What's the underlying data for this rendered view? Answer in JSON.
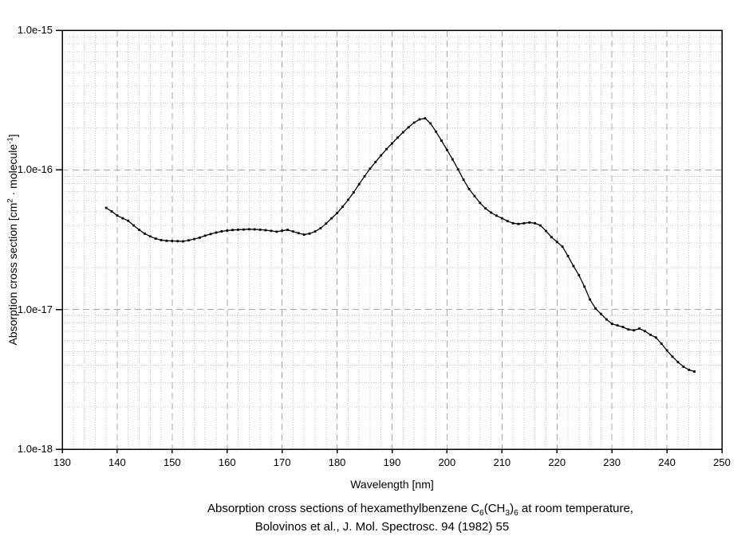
{
  "figure": {
    "background": "#ffffff"
  },
  "colors": {
    "curve": "#000000",
    "axis_frame": "#000000",
    "major_grid": "#ababab",
    "minor_grid": "#c9c9c9",
    "text": "#000000"
  },
  "x_axis": {
    "title": "Wavelength [nm]",
    "range": [
      130,
      250
    ],
    "major_ticks": [
      130,
      140,
      150,
      160,
      170,
      180,
      190,
      200,
      210,
      220,
      230,
      240,
      250
    ],
    "minor_step": 2
  },
  "y_axis": {
    "title_parts": [
      {
        "t": "Absorption cross section [cm"
      },
      {
        "t": "2",
        "style": "sup"
      },
      {
        "t": " · molecule"
      },
      {
        "t": "-1",
        "style": "sup"
      },
      {
        "t": "]"
      }
    ],
    "scale": "log",
    "tick_labels": [
      "1.0e-15",
      "1.0e-16",
      "1.0e-17",
      "1.0e-18"
    ],
    "tick_exponents": [
      -15,
      -16,
      -17,
      -18
    ],
    "range_exponents": [
      -18,
      -15
    ],
    "minor_mantissas": [
      2,
      3,
      4,
      5,
      6,
      7,
      8,
      9
    ]
  },
  "caption": {
    "line1_parts": [
      {
        "t": "Absorption cross sections of hexamethylbenzene C"
      },
      {
        "t": "6",
        "style": "sub"
      },
      {
        "t": "(CH"
      },
      {
        "t": "3",
        "style": "sub"
      },
      {
        "t": ")"
      },
      {
        "t": "6",
        "style": "sub"
      },
      {
        "t": " at room temperature,"
      }
    ],
    "line2": "Bolovinos et al., J. Mol. Spectrosc. 94 (1982) 55"
  },
  "chart_data": {
    "type": "line",
    "title": "Absorption cross sections of hexamethylbenzene C6(CH3)6 at room temperature, Bolovinos et al., J. Mol. Spectrosc. 94 (1982) 55",
    "xlabel": "Wavelength [nm]",
    "ylabel": "Absorption cross section [cm2 · molecule-1]",
    "x_range": [
      130,
      250
    ],
    "y_range": [
      1e-18,
      1e-15
    ],
    "grid": true,
    "legend": false,
    "marker": "square",
    "series": [
      {
        "name": "hexamethylbenzene absorption cross section",
        "x": [
          138,
          139,
          140,
          141,
          142,
          143,
          144,
          145,
          146,
          147,
          148,
          149,
          150,
          151,
          152,
          153,
          154,
          155,
          156,
          157,
          158,
          159,
          160,
          161,
          162,
          163,
          164,
          165,
          166,
          167,
          168,
          169,
          170,
          171,
          172,
          173,
          174,
          175,
          176,
          177,
          178,
          179,
          180,
          181,
          182,
          183,
          184,
          185,
          186,
          187,
          188,
          189,
          190,
          191,
          192,
          193,
          194,
          195,
          196,
          197,
          198,
          199,
          200,
          201,
          202,
          203,
          204,
          205,
          206,
          207,
          208,
          209,
          210,
          211,
          212,
          213,
          214,
          215,
          216,
          217,
          218,
          219,
          220,
          221,
          222,
          223,
          224,
          225,
          226,
          227,
          228,
          229,
          230,
          231,
          232,
          233,
          234,
          235,
          236,
          237,
          238,
          239,
          240,
          241,
          242,
          243,
          244,
          245
        ],
        "y_scale": 1e-17,
        "y_units": "cm^2 molecule^-1 (values are multiples of 1e-17)",
        "y": [
          5.35,
          5.05,
          4.72,
          4.5,
          4.32,
          4.0,
          3.72,
          3.5,
          3.34,
          3.22,
          3.14,
          3.11,
          3.1,
          3.09,
          3.08,
          3.13,
          3.2,
          3.27,
          3.38,
          3.47,
          3.56,
          3.63,
          3.68,
          3.71,
          3.73,
          3.74,
          3.76,
          3.75,
          3.73,
          3.7,
          3.66,
          3.61,
          3.67,
          3.72,
          3.62,
          3.52,
          3.44,
          3.5,
          3.62,
          3.82,
          4.13,
          4.5,
          4.9,
          5.45,
          6.1,
          6.9,
          7.9,
          9.0,
          10.2,
          11.4,
          12.7,
          14.1,
          15.5,
          17.0,
          18.6,
          20.2,
          21.8,
          23.0,
          23.4,
          21.5,
          18.8,
          16.2,
          13.9,
          11.9,
          10.1,
          8.5,
          7.3,
          6.5,
          5.8,
          5.3,
          4.95,
          4.7,
          4.5,
          4.3,
          4.15,
          4.1,
          4.15,
          4.2,
          4.15,
          4.0,
          3.65,
          3.3,
          3.05,
          2.82,
          2.42,
          2.05,
          1.76,
          1.46,
          1.18,
          1.02,
          0.93,
          0.85,
          0.79,
          0.77,
          0.75,
          0.72,
          0.71,
          0.73,
          0.7,
          0.66,
          0.63,
          0.57,
          0.51,
          0.46,
          0.42,
          0.39,
          0.37,
          0.36
        ]
      }
    ]
  }
}
